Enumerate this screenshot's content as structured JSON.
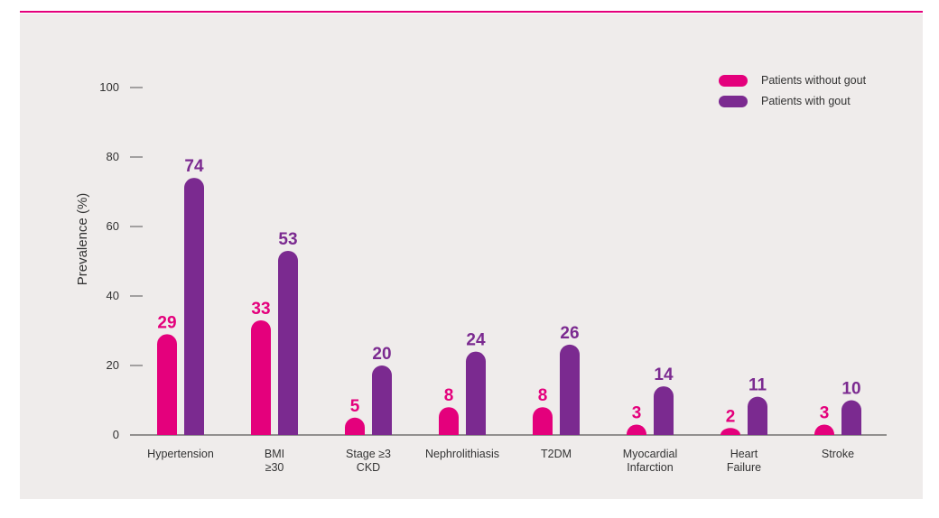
{
  "chart_data": {
    "type": "bar",
    "ylabel": "Prevalence (%)",
    "ylim": [
      0,
      100
    ],
    "yticks": [
      0,
      20,
      40,
      60,
      80,
      100
    ],
    "categories": [
      [
        "Hypertension"
      ],
      [
        "BMI",
        "≥30"
      ],
      [
        "Stage ≥3",
        "CKD"
      ],
      [
        "Nephrolithiasis"
      ],
      [
        "T2DM"
      ],
      [
        "Myocardial",
        "Infarction"
      ],
      [
        "Heart",
        "Failure"
      ],
      [
        "Stroke"
      ]
    ],
    "series": [
      {
        "name": "Patients without gout",
        "color": "#e4007c",
        "values": [
          29,
          33,
          5,
          8,
          8,
          3,
          2,
          3
        ]
      },
      {
        "name": "Patients with gout",
        "color": "#7b2a90",
        "values": [
          74,
          53,
          20,
          24,
          26,
          14,
          11,
          10
        ]
      }
    ],
    "legend": "top-right"
  }
}
